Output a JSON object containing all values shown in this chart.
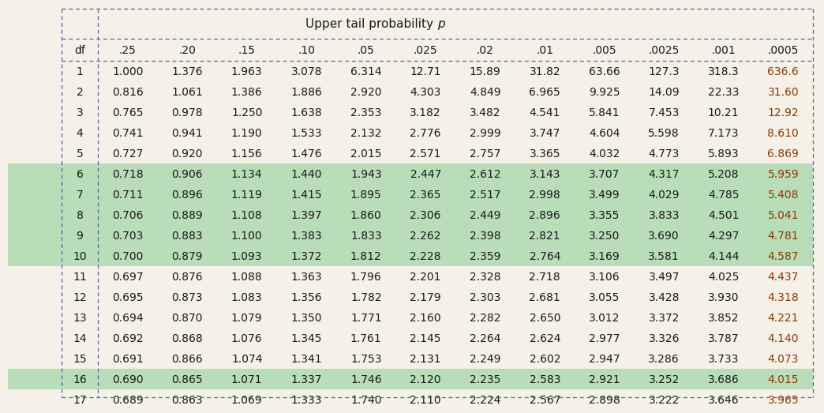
{
  "title_normal": "Upper tail probability ",
  "title_italic": "p",
  "columns": [
    "df",
    ".25",
    ".20",
    ".15",
    ".10",
    ".05",
    ".025",
    ".02",
    ".01",
    ".005",
    ".0025",
    ".001",
    ".0005"
  ],
  "rows": [
    [
      1,
      1.0,
      1.376,
      1.963,
      3.078,
      6.314,
      12.71,
      15.89,
      31.82,
      63.66,
      127.3,
      318.3,
      636.6
    ],
    [
      2,
      0.816,
      1.061,
      1.386,
      1.886,
      2.92,
      4.303,
      4.849,
      6.965,
      9.925,
      14.09,
      22.33,
      31.6
    ],
    [
      3,
      0.765,
      0.978,
      1.25,
      1.638,
      2.353,
      3.182,
      3.482,
      4.541,
      5.841,
      7.453,
      10.21,
      12.92
    ],
    [
      4,
      0.741,
      0.941,
      1.19,
      1.533,
      2.132,
      2.776,
      2.999,
      3.747,
      4.604,
      5.598,
      7.173,
      8.61
    ],
    [
      5,
      0.727,
      0.92,
      1.156,
      1.476,
      2.015,
      2.571,
      2.757,
      3.365,
      4.032,
      4.773,
      5.893,
      6.869
    ],
    [
      6,
      0.718,
      0.906,
      1.134,
      1.44,
      1.943,
      2.447,
      2.612,
      3.143,
      3.707,
      4.317,
      5.208,
      5.959
    ],
    [
      7,
      0.711,
      0.896,
      1.119,
      1.415,
      1.895,
      2.365,
      2.517,
      2.998,
      3.499,
      4.029,
      4.785,
      5.408
    ],
    [
      8,
      0.706,
      0.889,
      1.108,
      1.397,
      1.86,
      2.306,
      2.449,
      2.896,
      3.355,
      3.833,
      4.501,
      5.041
    ],
    [
      9,
      0.703,
      0.883,
      1.1,
      1.383,
      1.833,
      2.262,
      2.398,
      2.821,
      3.25,
      3.69,
      4.297,
      4.781
    ],
    [
      10,
      0.7,
      0.879,
      1.093,
      1.372,
      1.812,
      2.228,
      2.359,
      2.764,
      3.169,
      3.581,
      4.144,
      4.587
    ],
    [
      11,
      0.697,
      0.876,
      1.088,
      1.363,
      1.796,
      2.201,
      2.328,
      2.718,
      3.106,
      3.497,
      4.025,
      4.437
    ],
    [
      12,
      0.695,
      0.873,
      1.083,
      1.356,
      1.782,
      2.179,
      2.303,
      2.681,
      3.055,
      3.428,
      3.93,
      4.318
    ],
    [
      13,
      0.694,
      0.87,
      1.079,
      1.35,
      1.771,
      2.16,
      2.282,
      2.65,
      3.012,
      3.372,
      3.852,
      4.221
    ],
    [
      14,
      0.692,
      0.868,
      1.076,
      1.345,
      1.761,
      2.145,
      2.264,
      2.624,
      2.977,
      3.326,
      3.787,
      4.14
    ],
    [
      15,
      0.691,
      0.866,
      1.074,
      1.341,
      1.753,
      2.131,
      2.249,
      2.602,
      2.947,
      3.286,
      3.733,
      4.073
    ],
    [
      16,
      0.69,
      0.865,
      1.071,
      1.337,
      1.746,
      2.12,
      2.235,
      2.583,
      2.921,
      3.252,
      3.686,
      4.015
    ],
    [
      17,
      0.689,
      0.863,
      1.069,
      1.333,
      1.74,
      2.11,
      2.224,
      2.567,
      2.898,
      3.222,
      3.646,
      3.965
    ]
  ],
  "highlight_rows_idx": [
    5,
    6,
    7,
    8,
    9
  ],
  "highlight_row16_idx": 15,
  "highlight_color": "#b8ddb8",
  "highlight_row16_color": "#b8ddb8",
  "bg_color": "#f5f0e8",
  "text_color": "#1a1a1a",
  "last_col_color": "#8B3A00",
  "dotted_border_color": "#5566aa",
  "title_fontsize": 11,
  "header_fontsize": 10,
  "data_fontsize": 10
}
